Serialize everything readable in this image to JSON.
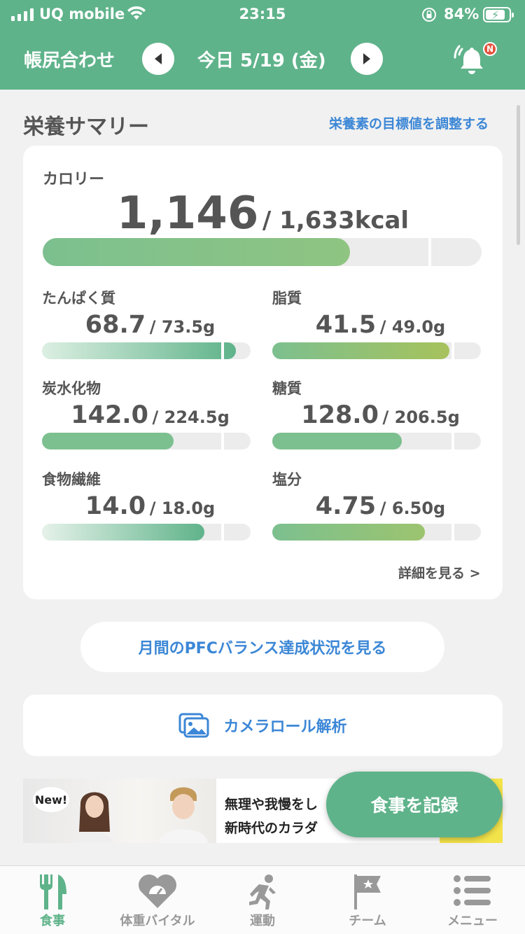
{
  "status_bar": {
    "carrier": "UQ mobile",
    "time": "23:15",
    "battery_percent": "84%",
    "battery_level": 0.84,
    "icons": [
      "signal-icon",
      "wifi-icon",
      "rotation-lock-icon",
      "battery-charging-icon"
    ]
  },
  "header": {
    "title": "帳尻合わせ",
    "date": "今日 5/19 (金)",
    "notification_badge": "N"
  },
  "summary": {
    "title": "栄養サマリー",
    "adjust_link": "栄養素の目標値を調整する",
    "calorie": {
      "label": "カロリー",
      "value": "1,146",
      "total": "/ 1,633kcal",
      "progress": 0.7
    },
    "nutrients": [
      {
        "label": "たんぱく質",
        "value": "68.7",
        "target": "/ 73.5g",
        "progress": 0.93
      },
      {
        "label": "脂質",
        "value": "41.5",
        "target": "/ 49.0g",
        "progress": 0.85
      },
      {
        "label": "炭水化物",
        "value": "142.0",
        "target": "/ 224.5g",
        "progress": 0.63
      },
      {
        "label": "糖質",
        "value": "128.0",
        "target": "/ 206.5g",
        "progress": 0.62
      },
      {
        "label": "食物繊維",
        "value": "14.0",
        "target": "/ 18.0g",
        "progress": 0.78
      },
      {
        "label": "塩分",
        "value": "4.75",
        "target": "/ 6.50g",
        "progress": 0.73
      }
    ],
    "detail_link": "詳細を見る >"
  },
  "pfc_button": "月間のPFCバランス達成状況を見る",
  "camera_roll": {
    "label": "カメラロール解析",
    "icon": "photo-gallery-icon"
  },
  "banner": {
    "badge": "New!",
    "line1": "無理や我慢をし",
    "line2": "新時代のカラダ"
  },
  "record_button": "食事を記録",
  "tabs": [
    {
      "label": "食事",
      "icon": "fork-knife-icon",
      "active": true
    },
    {
      "label": "体重バイタル",
      "icon": "heart-scale-icon",
      "active": false
    },
    {
      "label": "運動",
      "icon": "running-icon",
      "active": false
    },
    {
      "label": "チーム",
      "icon": "flag-icon",
      "active": false
    },
    {
      "label": "メニュー",
      "icon": "menu-list-icon",
      "active": false
    }
  ],
  "colors": {
    "header_green": "#5fb38a",
    "link_blue": "#3c87d6",
    "progress_green": "#7cc08f",
    "badge_red": "#e5533d"
  }
}
